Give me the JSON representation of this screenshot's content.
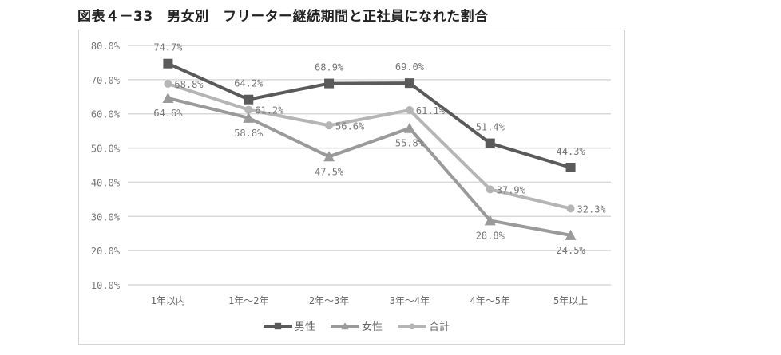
{
  "title": "図表４－33　男女別　フリーター継続期間と正社員になれた割合",
  "chart_data": {
    "type": "line",
    "title": "",
    "xlabel": "",
    "ylabel": "",
    "categories": [
      "1年以内",
      "1年～2年",
      "2年～3年",
      "3年～4年",
      "4年～5年",
      "5年以上"
    ],
    "ylim": [
      10,
      80
    ],
    "yticks": [
      "10.0%",
      "20.0%",
      "30.0%",
      "40.0%",
      "50.0%",
      "60.0%",
      "70.0%",
      "80.0%"
    ],
    "grid": true,
    "legend": "bottom",
    "series": [
      {
        "name": "男性",
        "marker": "square",
        "color": "#5a5a5a",
        "values": [
          74.7,
          64.2,
          68.9,
          69.0,
          51.4,
          44.3
        ],
        "labels": [
          "74.7%",
          "64.2%",
          "68.9%",
          "69.0%",
          "51.4%",
          "44.3%"
        ]
      },
      {
        "name": "女性",
        "marker": "triangle",
        "color": "#9a9a9a",
        "values": [
          64.6,
          58.8,
          47.5,
          55.8,
          28.8,
          24.5
        ],
        "labels": [
          "64.6%",
          "58.8%",
          "47.5%",
          "55.8%",
          "28.8%",
          "24.5%"
        ]
      },
      {
        "name": "合計",
        "marker": "circle",
        "color": "#b5b5b5",
        "values": [
          68.8,
          61.2,
          56.6,
          61.1,
          37.9,
          32.3
        ],
        "labels": [
          "68.8%",
          "61.2%",
          "56.6%",
          "61.1%",
          "37.9%",
          "32.3%"
        ]
      }
    ]
  }
}
